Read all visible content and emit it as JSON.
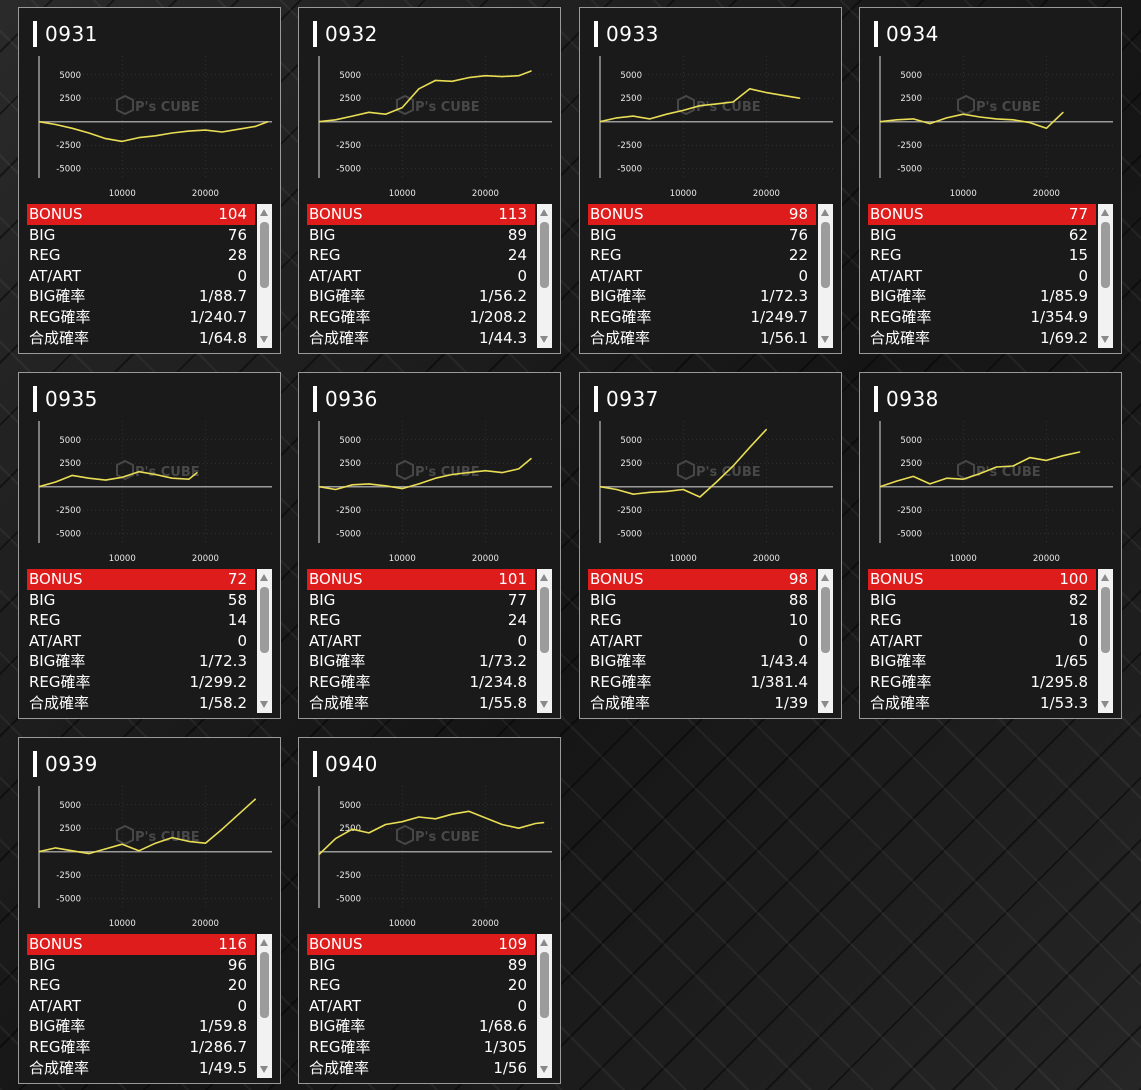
{
  "watermark": "P's CUBE",
  "colors": {
    "line": "#e8dd55",
    "bonus_bg": "#de1c1c",
    "zero_line": "#9a9a9a"
  },
  "chart_axis": {
    "y_ticks": [
      5000,
      2500,
      -2500,
      -5000
    ],
    "x_ticks": [
      10000,
      20000
    ],
    "ylim": [
      -6000,
      7000
    ],
    "xlim": [
      0,
      28000
    ]
  },
  "machines": [
    {
      "id": "0931",
      "stats": [
        [
          "BONUS",
          "104"
        ],
        [
          "BIG",
          "76"
        ],
        [
          "REG",
          "28"
        ],
        [
          "AT/ART",
          "0"
        ],
        [
          "BIG確率",
          "1/88.7"
        ],
        [
          "REG確率",
          "1/240.7"
        ],
        [
          "合成確率",
          "1/64.8"
        ]
      ],
      "chart_data": {
        "type": "line",
        "x": [
          0,
          2000,
          4000,
          6000,
          8000,
          10000,
          12000,
          14000,
          16000,
          18000,
          20000,
          22000,
          24000,
          26000,
          27500
        ],
        "y": [
          0,
          -300,
          -700,
          -1200,
          -1800,
          -2100,
          -1700,
          -1500,
          -1200,
          -1000,
          -900,
          -1100,
          -800,
          -500,
          0
        ]
      }
    },
    {
      "id": "0932",
      "stats": [
        [
          "BONUS",
          "113"
        ],
        [
          "BIG",
          "89"
        ],
        [
          "REG",
          "24"
        ],
        [
          "AT/ART",
          "0"
        ],
        [
          "BIG確率",
          "1/56.2"
        ],
        [
          "REG確率",
          "1/208.2"
        ],
        [
          "合成確率",
          "1/44.3"
        ]
      ],
      "chart_data": {
        "type": "line",
        "x": [
          0,
          2000,
          4000,
          6000,
          8000,
          10000,
          12000,
          14000,
          16000,
          18000,
          20000,
          22000,
          24000,
          25500
        ],
        "y": [
          0,
          200,
          600,
          1000,
          800,
          1500,
          3500,
          4400,
          4300,
          4700,
          4900,
          4800,
          4900,
          5400
        ]
      }
    },
    {
      "id": "0933",
      "stats": [
        [
          "BONUS",
          "98"
        ],
        [
          "BIG",
          "76"
        ],
        [
          "REG",
          "22"
        ],
        [
          "AT/ART",
          "0"
        ],
        [
          "BIG確率",
          "1/72.3"
        ],
        [
          "REG確率",
          "1/249.7"
        ],
        [
          "合成確率",
          "1/56.1"
        ]
      ],
      "chart_data": {
        "type": "line",
        "x": [
          0,
          2000,
          4000,
          6000,
          8000,
          10000,
          12000,
          14000,
          16000,
          18000,
          20000,
          22000,
          24000
        ],
        "y": [
          0,
          400,
          600,
          300,
          800,
          1200,
          1700,
          1900,
          2100,
          3500,
          3100,
          2800,
          2500
        ]
      }
    },
    {
      "id": "0934",
      "stats": [
        [
          "BONUS",
          "77"
        ],
        [
          "BIG",
          "62"
        ],
        [
          "REG",
          "15"
        ],
        [
          "AT/ART",
          "0"
        ],
        [
          "BIG確率",
          "1/85.9"
        ],
        [
          "REG確率",
          "1/354.9"
        ],
        [
          "合成確率",
          "1/69.2"
        ]
      ],
      "chart_data": {
        "type": "line",
        "x": [
          0,
          2000,
          4000,
          6000,
          8000,
          10000,
          12000,
          14000,
          16000,
          18000,
          20000,
          22000
        ],
        "y": [
          0,
          200,
          300,
          -200,
          400,
          800,
          500,
          300,
          200,
          -100,
          -700,
          1000
        ]
      }
    },
    {
      "id": "0935",
      "stats": [
        [
          "BONUS",
          "72"
        ],
        [
          "BIG",
          "58"
        ],
        [
          "REG",
          "14"
        ],
        [
          "AT/ART",
          "0"
        ],
        [
          "BIG確率",
          "1/72.3"
        ],
        [
          "REG確率",
          "1/299.2"
        ],
        [
          "合成確率",
          "1/58.2"
        ]
      ],
      "chart_data": {
        "type": "line",
        "x": [
          0,
          2000,
          4000,
          6000,
          8000,
          10000,
          12000,
          14000,
          16000,
          18000,
          19000
        ],
        "y": [
          0,
          500,
          1200,
          900,
          700,
          1000,
          1600,
          1300,
          900,
          800,
          1500
        ]
      }
    },
    {
      "id": "0936",
      "stats": [
        [
          "BONUS",
          "101"
        ],
        [
          "BIG",
          "77"
        ],
        [
          "REG",
          "24"
        ],
        [
          "AT/ART",
          "0"
        ],
        [
          "BIG確率",
          "1/73.2"
        ],
        [
          "REG確率",
          "1/234.8"
        ],
        [
          "合成確率",
          "1/55.8"
        ]
      ],
      "chart_data": {
        "type": "line",
        "x": [
          0,
          2000,
          4000,
          6000,
          8000,
          10000,
          12000,
          14000,
          16000,
          18000,
          20000,
          22000,
          24000,
          25500
        ],
        "y": [
          0,
          -300,
          200,
          300,
          100,
          -200,
          300,
          900,
          1300,
          1500,
          1700,
          1500,
          1900,
          3000
        ]
      }
    },
    {
      "id": "0937",
      "stats": [
        [
          "BONUS",
          "98"
        ],
        [
          "BIG",
          "88"
        ],
        [
          "REG",
          "10"
        ],
        [
          "AT/ART",
          "0"
        ],
        [
          "BIG確率",
          "1/43.4"
        ],
        [
          "REG確率",
          "1/381.4"
        ],
        [
          "合成確率",
          "1/39"
        ]
      ],
      "chart_data": {
        "type": "line",
        "x": [
          0,
          2000,
          4000,
          6000,
          8000,
          10000,
          12000,
          14000,
          16000,
          18000,
          20000
        ],
        "y": [
          0,
          -300,
          -800,
          -600,
          -500,
          -300,
          -1100,
          500,
          2200,
          4200,
          6100
        ]
      }
    },
    {
      "id": "0938",
      "stats": [
        [
          "BONUS",
          "100"
        ],
        [
          "BIG",
          "82"
        ],
        [
          "REG",
          "18"
        ],
        [
          "AT/ART",
          "0"
        ],
        [
          "BIG確率",
          "1/65"
        ],
        [
          "REG確率",
          "1/295.8"
        ],
        [
          "合成確率",
          "1/53.3"
        ]
      ],
      "chart_data": {
        "type": "line",
        "x": [
          0,
          2000,
          4000,
          6000,
          8000,
          10000,
          12000,
          14000,
          16000,
          18000,
          20000,
          22000,
          24000
        ],
        "y": [
          0,
          600,
          1100,
          300,
          900,
          800,
          1400,
          2100,
          2200,
          3100,
          2800,
          3300,
          3700
        ]
      }
    },
    {
      "id": "0939",
      "stats": [
        [
          "BONUS",
          "116"
        ],
        [
          "BIG",
          "96"
        ],
        [
          "REG",
          "20"
        ],
        [
          "AT/ART",
          "0"
        ],
        [
          "BIG確率",
          "1/59.8"
        ],
        [
          "REG確率",
          "1/286.7"
        ],
        [
          "合成確率",
          "1/49.5"
        ]
      ],
      "chart_data": {
        "type": "line",
        "x": [
          0,
          2000,
          4000,
          6000,
          8000,
          10000,
          12000,
          14000,
          16000,
          18000,
          20000,
          22000,
          24000,
          26000
        ],
        "y": [
          0,
          400,
          100,
          -200,
          300,
          800,
          100,
          900,
          1500,
          1100,
          900,
          2400,
          4000,
          5600
        ]
      }
    },
    {
      "id": "0940",
      "stats": [
        [
          "BONUS",
          "109"
        ],
        [
          "BIG",
          "89"
        ],
        [
          "REG",
          "20"
        ],
        [
          "AT/ART",
          "0"
        ],
        [
          "BIG確率",
          "1/68.6"
        ],
        [
          "REG確率",
          "1/305"
        ],
        [
          "合成確率",
          "1/56"
        ]
      ],
      "chart_data": {
        "type": "line",
        "x": [
          0,
          2000,
          4000,
          6000,
          8000,
          10000,
          12000,
          14000,
          16000,
          18000,
          20000,
          22000,
          24000,
          26000,
          27000
        ],
        "y": [
          -300,
          1400,
          2400,
          2000,
          2900,
          3200,
          3700,
          3500,
          4000,
          4300,
          3600,
          2900,
          2500,
          3000,
          3100
        ]
      }
    }
  ]
}
